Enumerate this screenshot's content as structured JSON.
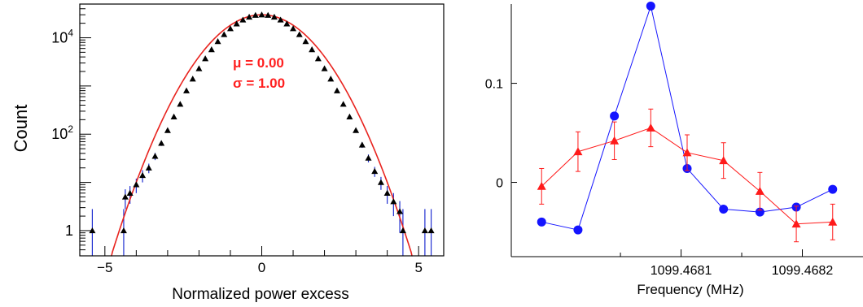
{
  "chart_data": [
    {
      "type": "scatter",
      "xlabel": "Normalized power excess",
      "ylabel": "Count",
      "y_scale": "log",
      "xlim": [
        -5.8,
        5.8
      ],
      "ylim": [
        0.3,
        50000
      ],
      "x_ticks": [
        {
          "value": -5,
          "label": "−5"
        },
        {
          "value": 0,
          "label": "0"
        },
        {
          "value": 5,
          "label": "5"
        }
      ],
      "y_ticks": [
        {
          "value": 1,
          "base": "1",
          "exp": ""
        },
        {
          "value": 100,
          "base": "10",
          "exp": "2"
        },
        {
          "value": 10000,
          "base": "10",
          "exp": "4"
        }
      ],
      "annotation": {
        "mu": "μ = 0.00",
        "sigma": "σ = 1.00",
        "color": "#ff2020"
      },
      "fit": {
        "type": "gaussian",
        "mu": 0.0,
        "sigma": 1.0,
        "amplitude": 30000,
        "color": "#e8231e"
      },
      "series": [
        {
          "marker": "triangle",
          "color": "#000000",
          "error_color": "#1f2fd1",
          "points": [
            {
              "x": -5.4,
              "y": 1,
              "err_low": 0.7,
              "err_high": 1.8
            },
            {
              "x": -4.4,
              "y": 1,
              "err_low": 0.7,
              "err_high": 1.8
            },
            {
              "x": -4.35,
              "y": 5,
              "err_low": 2.2,
              "err_high": 2.2
            },
            {
              "x": -4.2,
              "y": 6,
              "err_low": 2.4,
              "err_high": 2.4
            },
            {
              "x": -4.0,
              "y": 9,
              "err_low": 3,
              "err_high": 3
            },
            {
              "x": -3.8,
              "y": 14,
              "err_low": 4,
              "err_high": 4
            },
            {
              "x": -3.6,
              "y": 20,
              "err_low": 4.5,
              "err_high": 4.5
            },
            {
              "x": -3.4,
              "y": 35,
              "err_low": 6,
              "err_high": 6
            },
            {
              "x": -3.2,
              "y": 65,
              "err_low": 8,
              "err_high": 8
            },
            {
              "x": -3.0,
              "y": 120,
              "err_low": 11,
              "err_high": 11
            },
            {
              "x": -2.8,
              "y": 230,
              "err_low": 15,
              "err_high": 15
            },
            {
              "x": -2.6,
              "y": 420,
              "err_low": 20,
              "err_high": 20
            },
            {
              "x": -2.4,
              "y": 800,
              "err_low": 28,
              "err_high": 28
            },
            {
              "x": -2.2,
              "y": 1400,
              "err_low": 37,
              "err_high": 37
            },
            {
              "x": -2.0,
              "y": 2300,
              "err_low": 48,
              "err_high": 48
            },
            {
              "x": -1.8,
              "y": 3700,
              "err_low": 60,
              "err_high": 60
            },
            {
              "x": -1.6,
              "y": 5700,
              "err_low": 75,
              "err_high": 75
            },
            {
              "x": -1.4,
              "y": 8400,
              "err_low": 92,
              "err_high": 92
            },
            {
              "x": -1.2,
              "y": 11700,
              "err_low": 108,
              "err_high": 108
            },
            {
              "x": -1.0,
              "y": 15500,
              "err_low": 124,
              "err_high": 124
            },
            {
              "x": -0.8,
              "y": 19500,
              "err_low": 140,
              "err_high": 140
            },
            {
              "x": -0.6,
              "y": 23500,
              "err_low": 153,
              "err_high": 153
            },
            {
              "x": -0.4,
              "y": 27000,
              "err_low": 164,
              "err_high": 164
            },
            {
              "x": -0.2,
              "y": 29400,
              "err_low": 171,
              "err_high": 171
            },
            {
              "x": 0.0,
              "y": 30000,
              "err_low": 173,
              "err_high": 173
            },
            {
              "x": 0.2,
              "y": 29400,
              "err_low": 171,
              "err_high": 171
            },
            {
              "x": 0.4,
              "y": 27000,
              "err_low": 164,
              "err_high": 164
            },
            {
              "x": 0.6,
              "y": 23500,
              "err_low": 153,
              "err_high": 153
            },
            {
              "x": 0.8,
              "y": 19500,
              "err_low": 140,
              "err_high": 140
            },
            {
              "x": 1.0,
              "y": 15500,
              "err_low": 124,
              "err_high": 124
            },
            {
              "x": 1.2,
              "y": 11700,
              "err_low": 108,
              "err_high": 108
            },
            {
              "x": 1.4,
              "y": 8400,
              "err_low": 92,
              "err_high": 92
            },
            {
              "x": 1.6,
              "y": 5700,
              "err_low": 75,
              "err_high": 75
            },
            {
              "x": 1.8,
              "y": 3700,
              "err_low": 60,
              "err_high": 60
            },
            {
              "x": 2.0,
              "y": 2300,
              "err_low": 48,
              "err_high": 48
            },
            {
              "x": 2.2,
              "y": 1400,
              "err_low": 37,
              "err_high": 37
            },
            {
              "x": 2.4,
              "y": 800,
              "err_low": 28,
              "err_high": 28
            },
            {
              "x": 2.6,
              "y": 420,
              "err_low": 20,
              "err_high": 20
            },
            {
              "x": 2.8,
              "y": 230,
              "err_low": 15,
              "err_high": 15
            },
            {
              "x": 3.0,
              "y": 120,
              "err_low": 11,
              "err_high": 11
            },
            {
              "x": 3.2,
              "y": 60,
              "err_low": 8,
              "err_high": 8
            },
            {
              "x": 3.4,
              "y": 32,
              "err_low": 6,
              "err_high": 6
            },
            {
              "x": 3.6,
              "y": 17,
              "err_low": 4,
              "err_high": 4
            },
            {
              "x": 3.8,
              "y": 10,
              "err_low": 3,
              "err_high": 3
            },
            {
              "x": 4.0,
              "y": 6,
              "err_low": 2.4,
              "err_high": 2.4
            },
            {
              "x": 4.2,
              "y": 4,
              "err_low": 2,
              "err_high": 2
            },
            {
              "x": 4.4,
              "y": 2.5,
              "err_low": 1.6,
              "err_high": 1.6
            },
            {
              "x": 4.5,
              "y": 1,
              "err_low": 0.7,
              "err_high": 1.8
            },
            {
              "x": 5.2,
              "y": 1,
              "err_low": 0.7,
              "err_high": 1.8
            },
            {
              "x": 5.4,
              "y": 1,
              "err_low": 0.7,
              "err_high": 1.8
            }
          ]
        }
      ]
    },
    {
      "type": "line",
      "xlabel": "Frequency (MHz)",
      "ylabel": "",
      "xlim": [
        1099.46796,
        1099.46825
      ],
      "ylim": [
        -0.075,
        0.18
      ],
      "x_ticks": [
        {
          "value": 1099.4681,
          "label": "1099.4681"
        },
        {
          "value": 1099.4682,
          "label": "1099.4682"
        }
      ],
      "y_ticks": [
        {
          "value": 0,
          "label": "0"
        },
        {
          "value": 0.1,
          "label": "0.1"
        }
      ],
      "series": [
        {
          "marker": "circle",
          "color": "#1414ff",
          "x": [
            1099.467985,
            1099.468015,
            1099.468045,
            1099.468075,
            1099.468105,
            1099.468135,
            1099.468165,
            1099.468195,
            1099.468225
          ],
          "y": [
            -0.04,
            -0.048,
            0.067,
            0.178,
            0.014,
            -0.027,
            -0.03,
            -0.025,
            -0.007
          ]
        },
        {
          "marker": "triangle",
          "color": "#ff1a1a",
          "x": [
            1099.467985,
            1099.468015,
            1099.468045,
            1099.468075,
            1099.468105,
            1099.468135,
            1099.468165,
            1099.468195,
            1099.468225
          ],
          "y": [
            -0.004,
            0.031,
            0.042,
            0.055,
            0.03,
            0.022,
            -0.009,
            -0.042,
            -0.04
          ],
          "err": [
            0.018,
            0.02,
            0.019,
            0.019,
            0.018,
            0.018,
            0.019,
            0.018,
            0.018
          ]
        }
      ]
    }
  ]
}
